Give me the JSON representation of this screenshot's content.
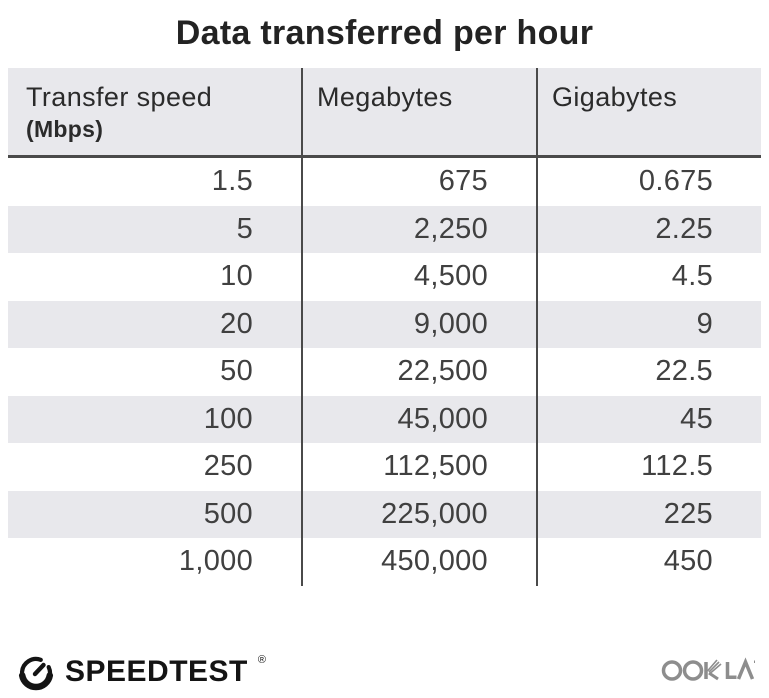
{
  "title": "Data transferred per hour",
  "table": {
    "headers": {
      "col1_line1": "Transfer speed",
      "col1_line2": "(Mbps)",
      "col2": "Megabytes",
      "col3": "Gigabytes"
    },
    "rows": [
      [
        "1.5",
        "675",
        "0.675"
      ],
      [
        "5",
        "2,250",
        "2.25"
      ],
      [
        "10",
        "4,500",
        "4.5"
      ],
      [
        "20",
        "9,000",
        "9"
      ],
      [
        "50",
        "22,500",
        "22.5"
      ],
      [
        "100",
        "45,000",
        "45"
      ],
      [
        "250",
        "112,500",
        "112.5"
      ],
      [
        "500",
        "225,000",
        "225"
      ],
      [
        "1,000",
        "450,000",
        "450"
      ]
    ]
  },
  "footer": {
    "speedtest_label": "SPEEDTEST",
    "speedtest_trademark": "®",
    "ookla_label": "OOKLA"
  },
  "colors": {
    "header_bg": "#e8e8ec",
    "row_alt_bg": "#e8e8ec",
    "divider": "#4a4a4a",
    "title_text": "#232323",
    "body_text": "#404040",
    "speedtest_black": "#141414",
    "ookla_gray": "#8d8d8d"
  },
  "chart_data": {
    "type": "table",
    "title": "Data transferred per hour",
    "columns": [
      "Transfer speed (Mbps)",
      "Megabytes",
      "Gigabytes"
    ],
    "rows": [
      [
        1.5,
        675,
        0.675
      ],
      [
        5,
        2250,
        2.25
      ],
      [
        10,
        4500,
        4.5
      ],
      [
        20,
        9000,
        9
      ],
      [
        50,
        22500,
        22.5
      ],
      [
        100,
        45000,
        45
      ],
      [
        250,
        112500,
        112.5
      ],
      [
        500,
        225000,
        225
      ],
      [
        1000,
        450000,
        450
      ]
    ]
  }
}
